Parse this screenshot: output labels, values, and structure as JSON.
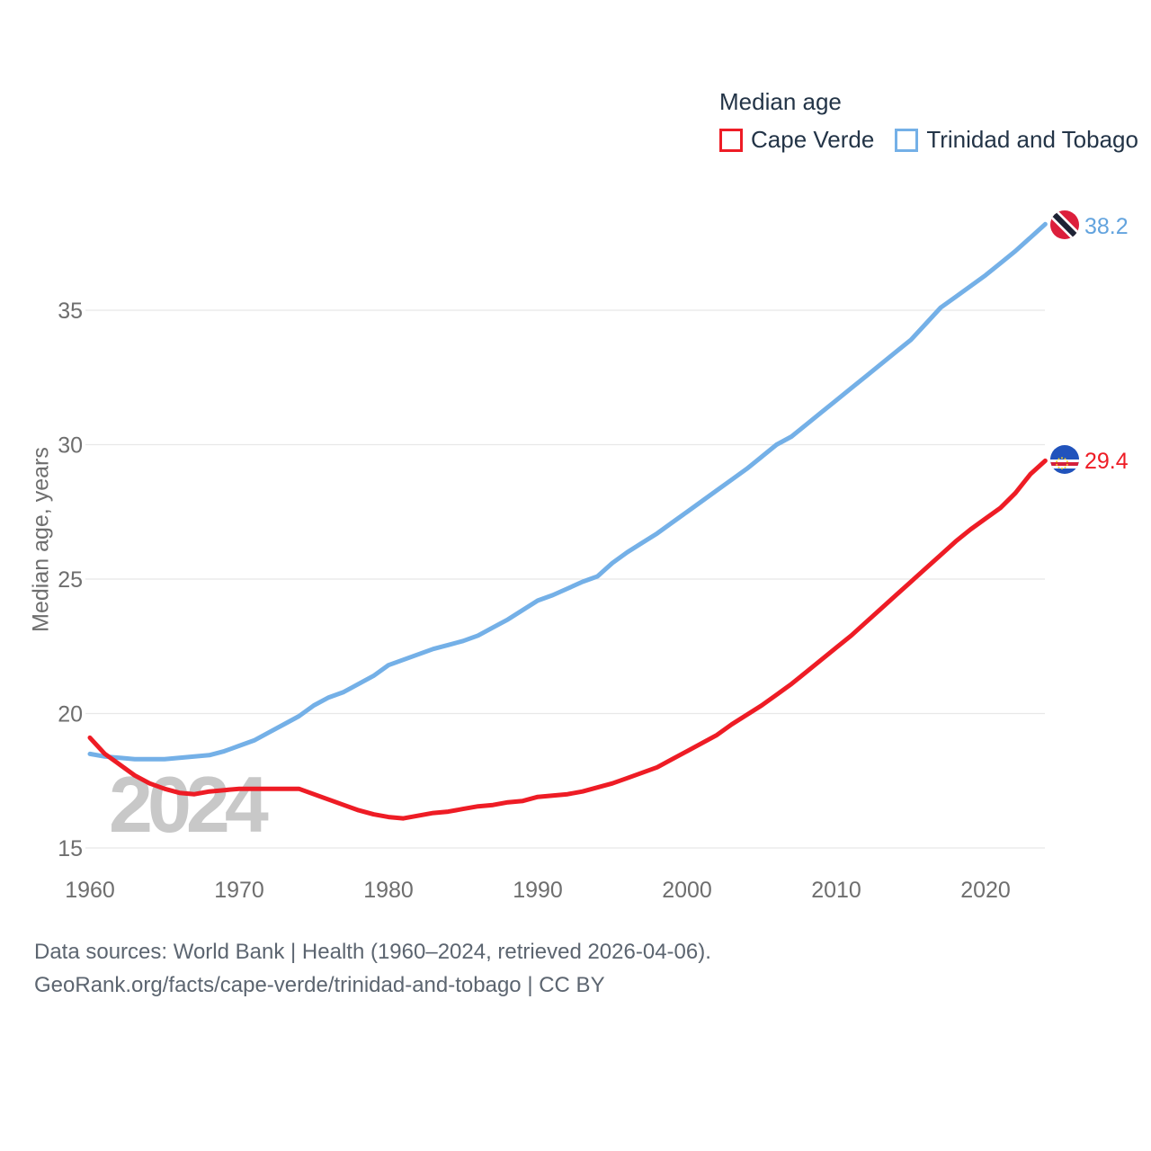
{
  "legend": {
    "title": "Median age",
    "items": [
      {
        "label": "Cape Verde",
        "color": "#ee1c25"
      },
      {
        "label": "Trinidad and Tobago",
        "color": "#74b0e7"
      }
    ]
  },
  "watermark": "2024",
  "end_labels": {
    "trinidad_and_tobago": "38.2",
    "cape_verde": "29.4"
  },
  "footer": {
    "line1": "Data sources: World Bank | Health (1960–2024, retrieved 2026-04-06).",
    "line2": "GeoRank.org/facts/cape-verde/trinidad-and-tobago | CC BY"
  },
  "colors": {
    "cape_verde": "#ee1c25",
    "trinidad_and_tobago": "#74b0e7",
    "grid": "#e8e8e8",
    "tick_text": "#6e6e6e",
    "legend_text": "#233447",
    "footer_text": "#5c6570",
    "watermark": "#c8c8c8",
    "end_label_trinidad": "#62a3de",
    "end_label_cape_verde": "#ee1c25"
  },
  "chart_data": {
    "type": "line",
    "title": "Median age",
    "xlabel": "",
    "ylabel": "Median age, years",
    "ylim": [
      15,
      39
    ],
    "xlim": [
      1960,
      2024
    ],
    "y_ticks": [
      15,
      20,
      25,
      30,
      35
    ],
    "x_ticks": [
      1960,
      1970,
      1980,
      1990,
      2000,
      2010,
      2020
    ],
    "grid": "horizontal-only",
    "legend_position": "top-right",
    "x": [
      1960,
      1961,
      1962,
      1963,
      1964,
      1965,
      1966,
      1967,
      1968,
      1969,
      1970,
      1971,
      1972,
      1973,
      1974,
      1975,
      1976,
      1977,
      1978,
      1979,
      1980,
      1981,
      1982,
      1983,
      1984,
      1985,
      1986,
      1987,
      1988,
      1989,
      1990,
      1991,
      1992,
      1993,
      1994,
      1995,
      1996,
      1997,
      1998,
      1999,
      2000,
      2001,
      2002,
      2003,
      2004,
      2005,
      2006,
      2007,
      2008,
      2009,
      2010,
      2011,
      2012,
      2013,
      2014,
      2015,
      2016,
      2017,
      2018,
      2019,
      2020,
      2021,
      2022,
      2023,
      2024
    ],
    "series": [
      {
        "name": "Cape Verde",
        "color": "#ee1c25",
        "end_value": 29.4,
        "values": [
          19.1,
          18.5,
          18.1,
          17.7,
          17.4,
          17.2,
          17.05,
          17.0,
          17.1,
          17.15,
          17.2,
          17.2,
          17.2,
          17.2,
          17.2,
          17.0,
          16.8,
          16.6,
          16.4,
          16.25,
          16.15,
          16.1,
          16.2,
          16.3,
          16.35,
          16.45,
          16.55,
          16.6,
          16.7,
          16.75,
          16.9,
          16.95,
          17.0,
          17.1,
          17.25,
          17.4,
          17.6,
          17.8,
          18.0,
          18.3,
          18.6,
          18.9,
          19.2,
          19.6,
          19.95,
          20.3,
          20.7,
          21.1,
          21.55,
          22.0,
          22.45,
          22.9,
          23.4,
          23.9,
          24.4,
          24.9,
          25.4,
          25.9,
          26.4,
          26.85,
          27.25,
          27.65,
          28.2,
          28.9,
          29.4
        ]
      },
      {
        "name": "Trinidad and Tobago",
        "color": "#74b0e7",
        "end_value": 38.2,
        "values": [
          18.5,
          18.4,
          18.35,
          18.3,
          18.3,
          18.3,
          18.35,
          18.4,
          18.45,
          18.6,
          18.8,
          19.0,
          19.3,
          19.6,
          19.9,
          20.3,
          20.6,
          20.8,
          21.1,
          21.4,
          21.8,
          22.0,
          22.2,
          22.4,
          22.55,
          22.7,
          22.9,
          23.2,
          23.5,
          23.85,
          24.2,
          24.4,
          24.65,
          24.9,
          25.1,
          25.6,
          26.0,
          26.35,
          26.7,
          27.1,
          27.5,
          27.9,
          28.3,
          28.7,
          29.1,
          29.55,
          30.0,
          30.3,
          30.75,
          31.2,
          31.65,
          32.1,
          32.55,
          33.0,
          33.45,
          33.9,
          34.5,
          35.1,
          35.5,
          35.9,
          36.3,
          36.75,
          37.2,
          37.7,
          38.2
        ]
      }
    ]
  }
}
